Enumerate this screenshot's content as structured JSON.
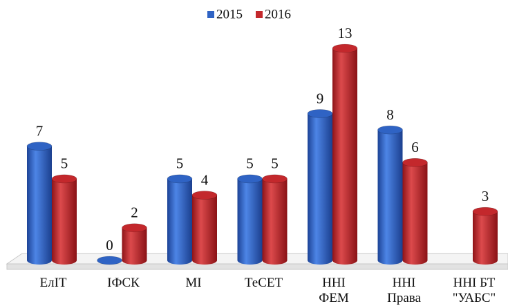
{
  "chart_data": {
    "type": "bar",
    "categories": [
      [
        "ЕлІТ"
      ],
      [
        "ІФСК"
      ],
      [
        "МІ"
      ],
      [
        "ТеСЕТ"
      ],
      [
        "ННІ",
        "ФЕМ"
      ],
      [
        "ННІ",
        "Права"
      ],
      [
        "ННІ БТ",
        "\"УАБС\""
      ]
    ],
    "series": [
      {
        "name": "2015",
        "color": "#2f63c4",
        "values": [
          7,
          0,
          5,
          5,
          9,
          8,
          null
        ]
      },
      {
        "name": "2016",
        "color": "#c3282c",
        "values": [
          5,
          2,
          4,
          5,
          13,
          6,
          3
        ]
      }
    ],
    "legend": "top"
  }
}
